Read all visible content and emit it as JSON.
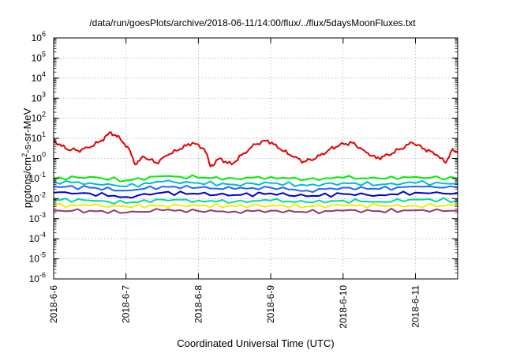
{
  "chart_data": {
    "type": "line",
    "title": "/data/run/goesPlots/archive/2018-06-11/14:00/flux/../flux/5daysMoonFluxes.txt",
    "xlabel": "Coordinated Universal Time (UTC)",
    "ylabel": {
      "prefix": "protons/cm",
      "sup": "2",
      "suffix": "-s-sr-MeV"
    },
    "yscale": "log",
    "ylim": [
      1e-06,
      1000000.0
    ],
    "xlim": [
      "2018-06-06",
      "2018-06-11 14:00"
    ],
    "x_ticks": [
      "2018-6-6",
      "2018-6-7",
      "2018-6-8",
      "2018-6-9",
      "2018-6-10",
      "2018-6-11"
    ],
    "y_ticks": [
      {
        "base": "10",
        "exp": "6"
      },
      {
        "base": "10",
        "exp": "5"
      },
      {
        "base": "10",
        "exp": "4"
      },
      {
        "base": "10",
        "exp": "3"
      },
      {
        "base": "10",
        "exp": "2"
      },
      {
        "base": "10",
        "exp": "1"
      },
      {
        "base": "10",
        "exp": "0"
      },
      {
        "base": "10",
        "exp": "-1"
      },
      {
        "base": "10",
        "exp": "-2"
      },
      {
        "base": "10",
        "exp": "-3"
      },
      {
        "base": "10",
        "exp": "-4"
      },
      {
        "base": "10",
        "exp": "-5"
      },
      {
        "base": "10",
        "exp": "-6"
      }
    ],
    "grid": true,
    "series": [
      {
        "color": "#e00000",
        "x": [
          "2018-06-06 00:00",
          "2018-06-06 04:00",
          "2018-06-06 08:00",
          "2018-06-06 12:00",
          "2018-06-06 16:00",
          "2018-06-06 19:00",
          "2018-06-06 22:00",
          "2018-06-07 01:00",
          "2018-06-07 03:00",
          "2018-06-07 06:00",
          "2018-06-07 10:00",
          "2018-06-07 14:00",
          "2018-06-07 18:00",
          "2018-06-07 22:00",
          "2018-06-08 02:00",
          "2018-06-08 04:00",
          "2018-06-08 07:00",
          "2018-06-08 11:00",
          "2018-06-08 15:00",
          "2018-06-08 19:00",
          "2018-06-08 23:00",
          "2018-06-09 03:00",
          "2018-06-09 07:00",
          "2018-06-09 11:00",
          "2018-06-09 15:00",
          "2018-06-09 19:00",
          "2018-06-09 23:00",
          "2018-06-10 03:00",
          "2018-06-10 07:00",
          "2018-06-10 11:00",
          "2018-06-10 15:00",
          "2018-06-10 19:00",
          "2018-06-10 23:00",
          "2018-06-11 03:00",
          "2018-06-11 07:00",
          "2018-06-11 10:00",
          "2018-06-11 12:00",
          "2018-06-11 14:00"
        ],
        "y": [
          8,
          3,
          2.5,
          3.5,
          8,
          20,
          10,
          3,
          0.5,
          1.2,
          0.6,
          1.5,
          3,
          6,
          3,
          0.4,
          1,
          0.5,
          1.8,
          5,
          8,
          3,
          1.3,
          0.7,
          1,
          2.5,
          5,
          6,
          2.5,
          1,
          1.5,
          3,
          6,
          3,
          1.5,
          0.6,
          2.5,
          2
        ]
      },
      {
        "color": "#00ee00",
        "x": [
          "2018-06-06 00:00",
          "2018-06-06 12:00",
          "2018-06-07 00:00",
          "2018-06-07 12:00",
          "2018-06-08 00:00",
          "2018-06-08 12:00",
          "2018-06-09 00:00",
          "2018-06-09 12:00",
          "2018-06-10 00:00",
          "2018-06-10 12:00",
          "2018-06-11 00:00",
          "2018-06-11 14:00"
        ],
        "y": [
          0.1,
          0.12,
          0.08,
          0.13,
          0.11,
          0.1,
          0.12,
          0.09,
          0.11,
          0.1,
          0.12,
          0.1
        ]
      },
      {
        "color": "#00bbdd",
        "x": [
          "2018-06-06 00:00",
          "2018-06-06 12:00",
          "2018-06-07 00:00",
          "2018-06-07 12:00",
          "2018-06-08 00:00",
          "2018-06-08 12:00",
          "2018-06-09 00:00",
          "2018-06-09 12:00",
          "2018-06-10 00:00",
          "2018-06-10 12:00",
          "2018-06-11 00:00",
          "2018-06-11 14:00"
        ],
        "y": [
          0.07,
          0.06,
          0.04,
          0.07,
          0.06,
          0.05,
          0.06,
          0.045,
          0.06,
          0.05,
          0.06,
          0.055
        ]
      },
      {
        "color": "#2266ff",
        "x": [
          "2018-06-06 00:00",
          "2018-06-06 12:00",
          "2018-06-07 00:00",
          "2018-06-07 12:00",
          "2018-06-08 00:00",
          "2018-06-08 12:00",
          "2018-06-09 00:00",
          "2018-06-09 12:00",
          "2018-06-10 00:00",
          "2018-06-10 12:00",
          "2018-06-11 00:00",
          "2018-06-11 14:00"
        ],
        "y": [
          0.04,
          0.035,
          0.025,
          0.04,
          0.035,
          0.03,
          0.035,
          0.025,
          0.035,
          0.03,
          0.04,
          0.035
        ]
      },
      {
        "color": "#0000cc",
        "x": [
          "2018-06-06 00:00",
          "2018-06-06 12:00",
          "2018-06-07 00:00",
          "2018-06-07 12:00",
          "2018-06-08 00:00",
          "2018-06-08 12:00",
          "2018-06-09 00:00",
          "2018-06-09 12:00",
          "2018-06-10 00:00",
          "2018-06-10 12:00",
          "2018-06-11 00:00",
          "2018-06-11 14:00"
        ],
        "y": [
          0.02,
          0.018,
          0.012,
          0.02,
          0.017,
          0.015,
          0.018,
          0.013,
          0.017,
          0.015,
          0.02,
          0.018
        ]
      },
      {
        "color": "#00dd99",
        "x": [
          "2018-06-06 00:00",
          "2018-06-06 12:00",
          "2018-06-07 00:00",
          "2018-06-07 12:00",
          "2018-06-08 00:00",
          "2018-06-08 12:00",
          "2018-06-09 00:00",
          "2018-06-09 12:00",
          "2018-06-10 00:00",
          "2018-06-10 12:00",
          "2018-06-11 00:00",
          "2018-06-11 14:00"
        ],
        "y": [
          0.009,
          0.008,
          0.006,
          0.009,
          0.008,
          0.007,
          0.008,
          0.0065,
          0.008,
          0.007,
          0.009,
          0.008
        ]
      },
      {
        "color": "#eeee00",
        "x": [
          "2018-06-06 00:00",
          "2018-06-06 12:00",
          "2018-06-07 00:00",
          "2018-06-07 12:00",
          "2018-06-08 00:00",
          "2018-06-08 12:00",
          "2018-06-09 00:00",
          "2018-06-09 12:00",
          "2018-06-10 00:00",
          "2018-06-10 12:00",
          "2018-06-11 00:00",
          "2018-06-11 14:00"
        ],
        "y": [
          0.0045,
          0.0045,
          0.004,
          0.0045,
          0.0045,
          0.0042,
          0.0045,
          0.004,
          0.0045,
          0.0043,
          0.0045,
          0.0045
        ]
      },
      {
        "color": "#993377",
        "x": [
          "2018-06-06 00:00",
          "2018-06-06 12:00",
          "2018-06-07 00:00",
          "2018-06-07 12:00",
          "2018-06-08 00:00",
          "2018-06-08 12:00",
          "2018-06-09 00:00",
          "2018-06-09 12:00",
          "2018-06-10 00:00",
          "2018-06-10 12:00",
          "2018-06-11 00:00",
          "2018-06-11 14:00"
        ],
        "y": [
          0.0025,
          0.0025,
          0.002,
          0.0026,
          0.0024,
          0.0023,
          0.0025,
          0.0021,
          0.0025,
          0.0024,
          0.0026,
          0.0025
        ]
      }
    ]
  }
}
